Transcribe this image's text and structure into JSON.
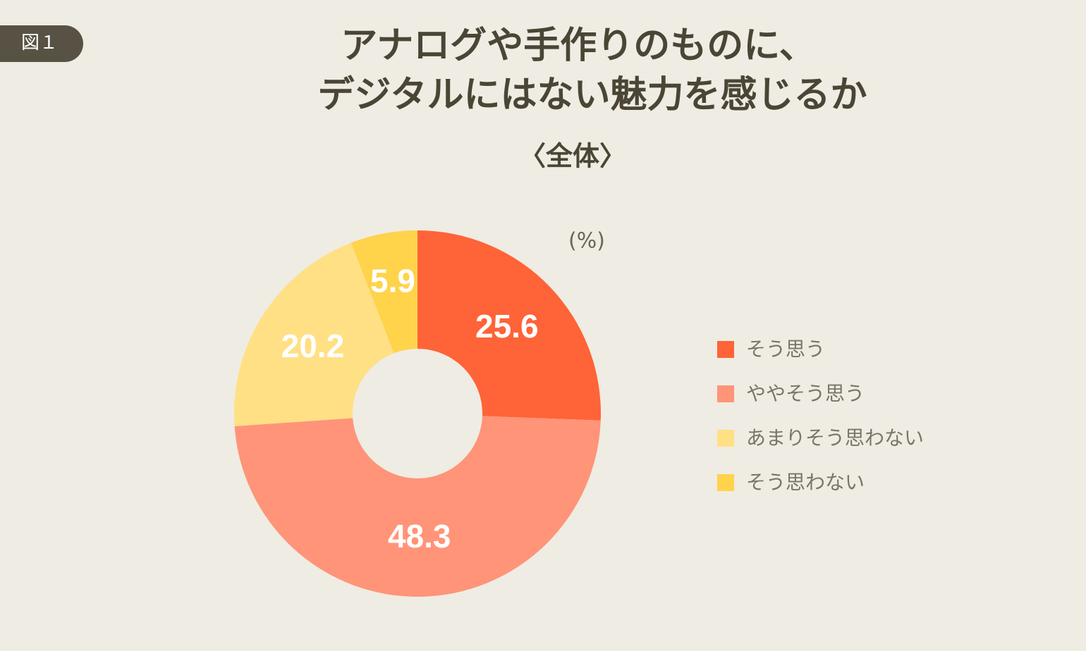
{
  "badge": "図１",
  "chart_data": {
    "type": "pie",
    "donut": true,
    "title": [
      "アナログや手作りのものに、",
      "デジタルにはない魅力を感じるか"
    ],
    "subtitle": "〈全体〉",
    "unit_label": "(%)",
    "categories": [
      "そう思う",
      "ややそう思う",
      "あまりそう思わない",
      "そう思わない"
    ],
    "values": [
      25.6,
      48.3,
      20.2,
      5.9
    ],
    "colors": [
      "#ff6338",
      "#ff9478",
      "#ffe085",
      "#ffd34a"
    ],
    "legend": "right"
  }
}
